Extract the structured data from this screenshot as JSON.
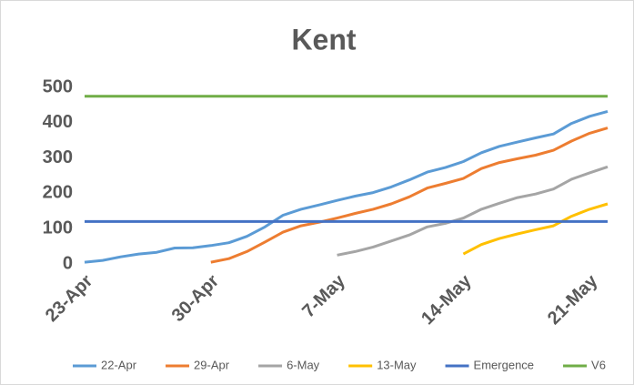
{
  "chart_data": {
    "type": "line",
    "title": "Kent",
    "categories": [
      "23-Apr",
      null,
      null,
      null,
      null,
      null,
      null,
      "30-Apr",
      null,
      null,
      null,
      null,
      null,
      null,
      "7-May",
      null,
      null,
      null,
      null,
      null,
      null,
      "14-May",
      null,
      null,
      null,
      null,
      null,
      null,
      "21-May",
      null
    ],
    "series": [
      {
        "name": "22-Apr",
        "color": "#5b9bd5",
        "values": [
          5,
          10,
          20,
          28,
          33,
          45,
          46,
          52,
          60,
          78,
          105,
          138,
          155,
          167,
          180,
          192,
          202,
          218,
          238,
          260,
          273,
          290,
          315,
          333,
          345,
          357,
          368,
          398,
          418,
          432
        ]
      },
      {
        "name": "29-Apr",
        "color": "#ed7d31",
        "values": [
          null,
          null,
          null,
          null,
          null,
          null,
          null,
          5,
          15,
          35,
          62,
          90,
          108,
          118,
          130,
          143,
          155,
          170,
          190,
          215,
          228,
          242,
          270,
          287,
          298,
          308,
          322,
          348,
          370,
          385
        ]
      },
      {
        "name": "6-May",
        "color": "#a5a5a5",
        "values": [
          null,
          null,
          null,
          null,
          null,
          null,
          null,
          null,
          null,
          null,
          null,
          null,
          null,
          null,
          25,
          35,
          48,
          65,
          82,
          105,
          115,
          130,
          155,
          172,
          188,
          198,
          212,
          240,
          258,
          275
        ]
      },
      {
        "name": "13-May",
        "color": "#ffc000",
        "values": [
          null,
          null,
          null,
          null,
          null,
          null,
          null,
          null,
          null,
          null,
          null,
          null,
          null,
          null,
          null,
          null,
          null,
          null,
          null,
          null,
          null,
          28,
          55,
          72,
          85,
          97,
          108,
          135,
          155,
          170
        ]
      },
      {
        "name": "Emergence",
        "color": "#4472c4",
        "values": [
          120,
          120,
          120,
          120,
          120,
          120,
          120,
          120,
          120,
          120,
          120,
          120,
          120,
          120,
          120,
          120,
          120,
          120,
          120,
          120,
          120,
          120,
          120,
          120,
          120,
          120,
          120,
          120,
          120,
          120
        ]
      },
      {
        "name": "V6",
        "color": "#70ad47",
        "values": [
          475,
          475,
          475,
          475,
          475,
          475,
          475,
          475,
          475,
          475,
          475,
          475,
          475,
          475,
          475,
          475,
          475,
          475,
          475,
          475,
          475,
          475,
          475,
          475,
          475,
          475,
          475,
          475,
          475,
          475
        ]
      }
    ],
    "ylim": [
      0,
      500
    ],
    "yticks": [
      0,
      100,
      200,
      300,
      400,
      500
    ],
    "grid": false,
    "legend": "bottom"
  }
}
